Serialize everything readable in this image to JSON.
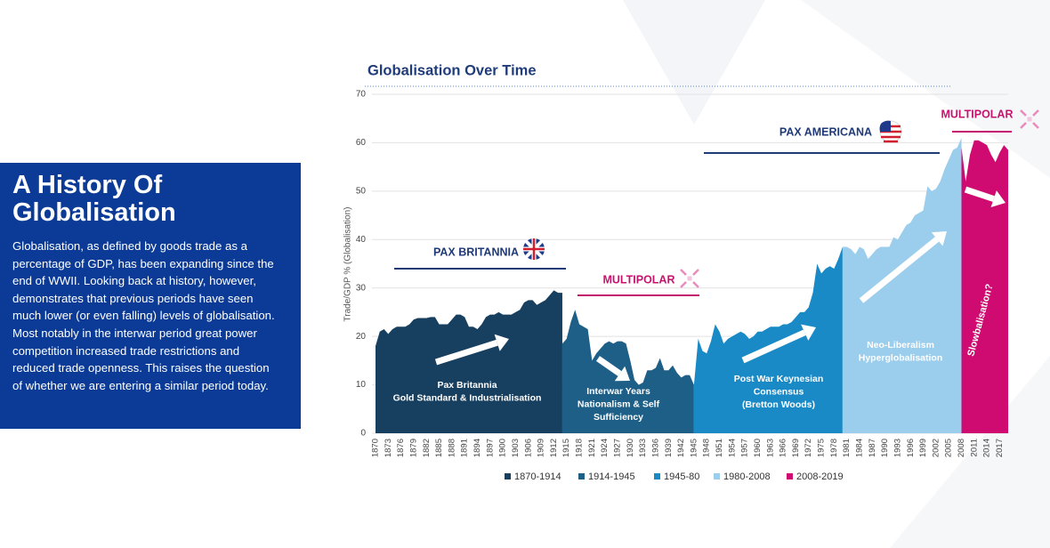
{
  "panel": {
    "title": "A History Of Globalisation",
    "text": "Globalisation, as defined by goods trade as a percentage of GDP, has been expanding since the end of WWII. Looking back at history, however, demonstrates that previous periods have seen much lower (or even falling) levels of globalisation. Most notably in the interwar period great power competition increased trade restrictions and reduced trade openness. This raises the question of whether we are entering a similar period today."
  },
  "chart_data": {
    "type": "area",
    "title": "Globalisation Over Time",
    "y_label": "Trade/GDP % (Globalisation)",
    "xlim": [
      1870,
      2019
    ],
    "ylim": [
      0,
      70
    ],
    "yticks": [
      0,
      10,
      20,
      30,
      40,
      50,
      60,
      70
    ],
    "grid": true,
    "xticks": [
      1870,
      1873,
      1876,
      1879,
      1882,
      1885,
      1888,
      1891,
      1894,
      1897,
      1900,
      1903,
      1906,
      1909,
      1912,
      1915,
      1918,
      1921,
      1924,
      1927,
      1930,
      1933,
      1936,
      1939,
      1942,
      1945,
      1948,
      1951,
      1954,
      1957,
      1960,
      1963,
      1966,
      1969,
      1972,
      1975,
      1978,
      1981,
      1984,
      1987,
      1990,
      1993,
      1996,
      1999,
      2002,
      2005,
      2008,
      2011,
      2014,
      2017
    ],
    "series": [
      {
        "name": "1870-1914",
        "color": "#173f5f",
        "x": [
          1870,
          1871,
          1872,
          1873,
          1874,
          1875,
          1876,
          1877,
          1878,
          1879,
          1880,
          1881,
          1882,
          1883,
          1884,
          1885,
          1886,
          1887,
          1888,
          1889,
          1890,
          1891,
          1892,
          1893,
          1894,
          1895,
          1896,
          1897,
          1898,
          1899,
          1900,
          1901,
          1902,
          1903,
          1904,
          1905,
          1906,
          1907,
          1908,
          1909,
          1910,
          1911,
          1912,
          1913,
          1914
        ],
        "values": [
          18,
          21,
          21.5,
          20.5,
          21.5,
          22,
          22,
          22,
          22.5,
          23.5,
          23.8,
          23.8,
          23.8,
          24,
          24,
          22.5,
          22.5,
          22.5,
          23.5,
          24.5,
          24.5,
          24,
          22,
          22,
          21.5,
          22.5,
          24,
          24.5,
          24.5,
          25,
          24.5,
          24.5,
          24.5,
          25,
          25.5,
          27,
          27.5,
          27.5,
          26.5,
          27,
          27.5,
          28.5,
          29.5,
          29,
          29
        ]
      },
      {
        "name": "1914-1945",
        "color": "#1e5f88",
        "x": [
          1914,
          1915,
          1916,
          1917,
          1918,
          1919,
          1920,
          1921,
          1922,
          1923,
          1924,
          1925,
          1926,
          1927,
          1928,
          1929,
          1930,
          1931,
          1932,
          1933,
          1934,
          1935,
          1936,
          1937,
          1938,
          1939,
          1940,
          1941,
          1942,
          1943,
          1944,
          1945
        ],
        "values": [
          18.5,
          19.5,
          23,
          25.5,
          22.5,
          22,
          21.5,
          15,
          16.5,
          17.5,
          18.5,
          19,
          18.5,
          19,
          19,
          18.5,
          15,
          11,
          10,
          10.5,
          13,
          13,
          13.5,
          15.5,
          13,
          13,
          14,
          12.5,
          11.5,
          12,
          12,
          10
        ]
      },
      {
        "name": "1945-80",
        "color": "#1a8ac6",
        "x": [
          1945,
          1946,
          1947,
          1948,
          1949,
          1950,
          1951,
          1952,
          1953,
          1954,
          1955,
          1956,
          1957,
          1958,
          1959,
          1960,
          1961,
          1962,
          1963,
          1964,
          1965,
          1966,
          1967,
          1968,
          1969,
          1970,
          1971,
          1972,
          1973,
          1974,
          1975,
          1976,
          1977,
          1978,
          1979,
          1980
        ],
        "values": [
          10,
          19.5,
          17,
          16.5,
          19,
          22.5,
          21,
          18.5,
          19.5,
          20,
          20.5,
          21,
          20.5,
          19.5,
          20,
          21,
          21,
          21.5,
          22,
          22,
          22,
          22.5,
          22.5,
          23,
          24,
          25,
          25,
          26,
          29,
          35,
          33,
          34,
          34.5,
          34,
          36,
          38.5
        ]
      },
      {
        "name": "1980-2008",
        "color": "#9bcdec",
        "x": [
          1980,
          1981,
          1982,
          1983,
          1984,
          1985,
          1986,
          1987,
          1988,
          1989,
          1990,
          1991,
          1992,
          1993,
          1994,
          1995,
          1996,
          1997,
          1998,
          1999,
          2000,
          2001,
          2002,
          2003,
          2004,
          2005,
          2006,
          2007,
          2008
        ],
        "values": [
          38.5,
          38.5,
          38,
          37,
          38.5,
          38,
          36,
          37,
          38,
          38.5,
          38.5,
          38.5,
          40.5,
          40,
          41.5,
          43,
          43.5,
          45,
          45.5,
          46,
          51,
          50,
          50.5,
          52,
          54.5,
          56.5,
          58.5,
          59,
          61
        ]
      },
      {
        "name": "2008-2019",
        "color": "#cf0a70",
        "x": [
          2008,
          2009,
          2010,
          2011,
          2012,
          2013,
          2014,
          2015,
          2016,
          2017,
          2018,
          2019
        ],
        "values": [
          59,
          52,
          57.5,
          60.5,
          60.5,
          60,
          59.5,
          57.5,
          56,
          58,
          59.5,
          58.5
        ]
      }
    ],
    "era_labels": [
      {
        "text": "PAX BRITANNIA",
        "color": "#1f3a78"
      },
      {
        "text": "MULTIPOLAR",
        "color": "#c4146f"
      },
      {
        "text": "PAX AMERICANA",
        "color": "#1f3a78"
      },
      {
        "text": "MULTIPOLAR",
        "color": "#c4146f"
      }
    ],
    "period_labels": [
      [
        "Pax Britannia",
        "Gold Standard & Industrialisation"
      ],
      [
        "Interwar Years",
        "Nationalism & Self",
        "Sufficiency"
      ],
      [
        "Post War Keynesian",
        "Consensus",
        "(Bretton Woods)"
      ],
      [
        "Neo-Liberalism",
        "Hyperglobalisation"
      ],
      [
        "Slowbalisation?"
      ]
    ]
  }
}
